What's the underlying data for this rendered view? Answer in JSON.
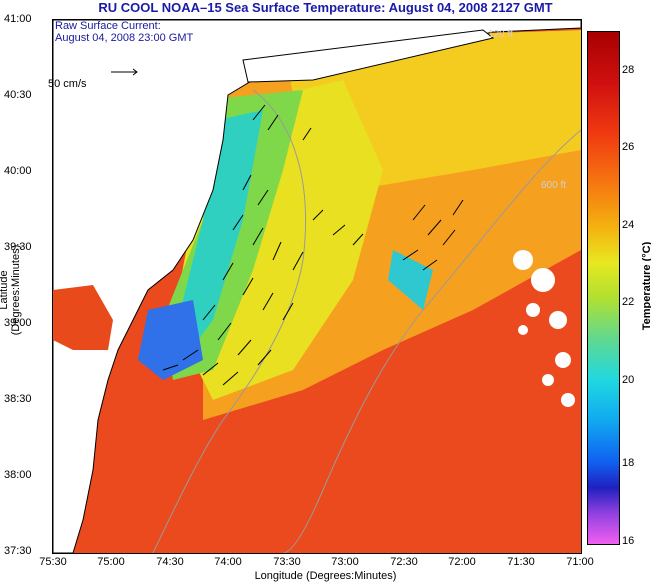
{
  "title": "RU COOL  NOAA–15  Sea Surface Temperature:  August 04, 2008 2127 GMT",
  "subtitle_line1": "Raw Surface Current:",
  "subtitle_line2": "August 04, 2008 23:00 GMT",
  "scale_label": "50 cm/s",
  "depth_label_120": "120 ft",
  "depth_label_600": "600 ft",
  "axes": {
    "xlabel": "Longitude (Degrees:Minutes)",
    "ylabel": "Latitude (Degrees:Minutes)",
    "xticks": [
      "75:30",
      "75:00",
      "74:30",
      "74:00",
      "73:30",
      "73:00",
      "72:30",
      "72:00",
      "71:30",
      "71:00"
    ],
    "yticks": [
      "41:00",
      "40:30",
      "40:00",
      "39:30",
      "39:00",
      "38:30",
      "38:00",
      "37:30"
    ]
  },
  "colorbar": {
    "label": "Temperature (°C)",
    "ticks": [
      "28",
      "26",
      "24",
      "22",
      "20",
      "18",
      "16"
    ]
  },
  "colors": {
    "title": "#1a1aa8",
    "warm": "#e94a1c",
    "land": "#ffffff"
  }
}
